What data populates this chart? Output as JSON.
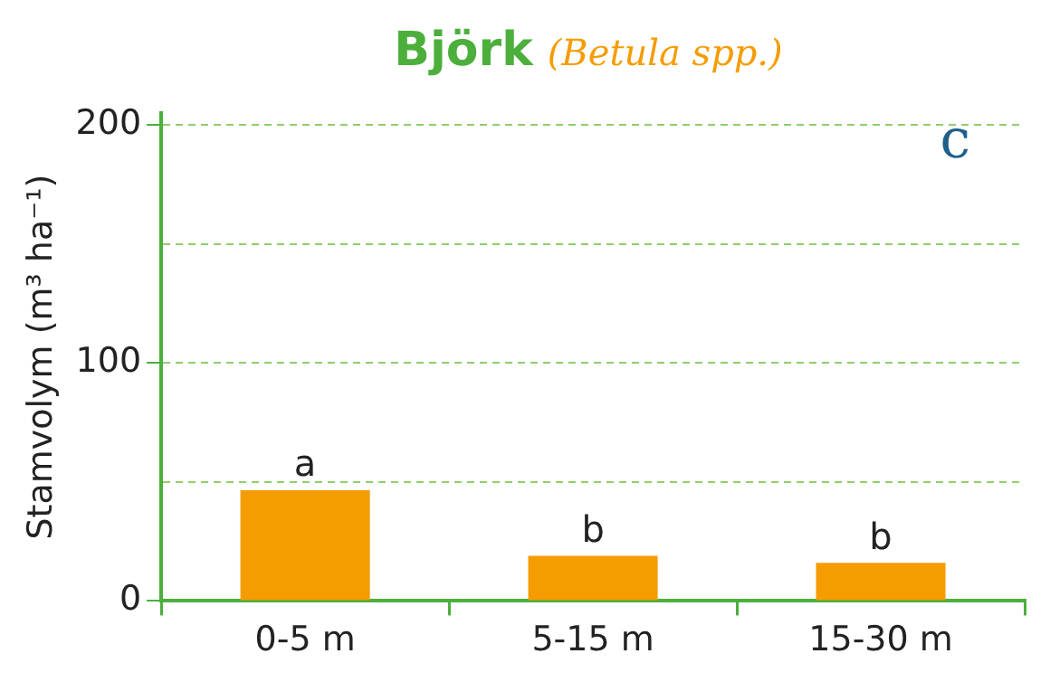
{
  "chart_data": {
    "type": "bar",
    "title": "Björk",
    "subtitle": "(Betula spp.)",
    "ylabel": "Stamvolym (m³ ha⁻¹)",
    "categories": [
      "0-5 m",
      "5-15 m",
      "15-30 m"
    ],
    "values": [
      46.5,
      19,
      16
    ],
    "color": "#f59c00",
    "ylim": [
      0,
      205
    ],
    "yticks": [
      0,
      {
        "value": 50,
        "label": null
      },
      100,
      {
        "value": 150,
        "label": null
      },
      200
    ],
    "grid": "y",
    "annotations": [
      {
        "text": "a",
        "x": "0-5 m",
        "y": 46.5
      },
      {
        "text": "b",
        "x": "5-15 m",
        "y": 19
      },
      {
        "text": "b",
        "x": "15-30 m",
        "y": 16
      },
      "c"
    ]
  }
}
